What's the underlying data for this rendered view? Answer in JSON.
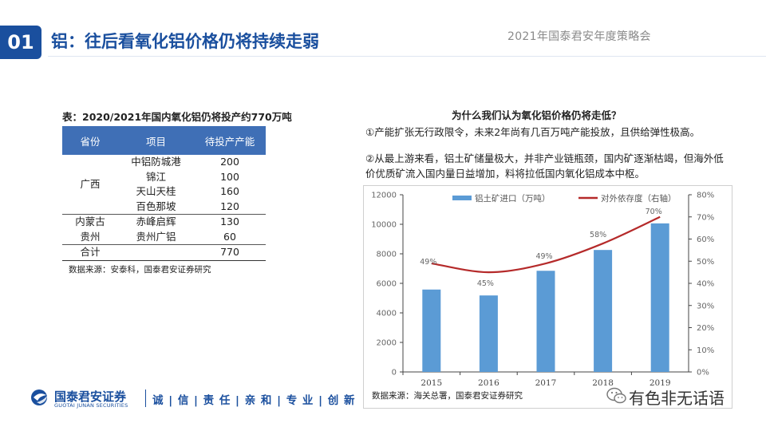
{
  "header": {
    "badge": "01",
    "title": "铝：往后看氧化铝价格仍将持续走弱",
    "event": "2021年国泰君安年度策略会"
  },
  "table": {
    "caption": "表：2020/2021年国内氧化铝仍将投产约770万吨",
    "headers": [
      "省份",
      "项目",
      "待投产产能"
    ],
    "groups": [
      {
        "province": "广西",
        "rows": [
          {
            "project": "中铝防城港",
            "capacity": "200"
          },
          {
            "project": "锦江",
            "capacity": "100"
          },
          {
            "project": "天山天桂",
            "capacity": "160"
          },
          {
            "project": "百色那坡",
            "capacity": "120"
          }
        ]
      },
      {
        "province": "内蒙古",
        "rows": [
          {
            "project": "赤峰启辉",
            "capacity": "130"
          }
        ]
      },
      {
        "province": "贵州",
        "rows": [
          {
            "project": "贵州广铝",
            "capacity": "60"
          }
        ]
      }
    ],
    "total": {
      "label": "合计",
      "capacity": "770"
    },
    "source": "数据来源：安泰科，国泰君安证券研究"
  },
  "right": {
    "question": "为什么我们认为氧化铝价格仍将走低？",
    "point1": "①产能扩张无行政限令，未来2年尚有几百万吨产能投放，且供给弹性极高。",
    "point2": "②从最上游来看，铝土矿储量极大，并非产业链瓶颈，国内矿逐渐枯竭，但海外低价优质矿流入国内量日益增加，料将拉低国内氧化铝成本中枢。",
    "chart_source": "数据来源：海关总署，国泰君安证券研究"
  },
  "chart_data": {
    "type": "bar",
    "categories": [
      "2015",
      "2016",
      "2017",
      "2018",
      "2019"
    ],
    "series": [
      {
        "name": "铝土矿进口（万吨）",
        "type": "bar",
        "axis": "left",
        "color": "#5b9bd5",
        "values": [
          5580,
          5180,
          6850,
          8260,
          10060
        ]
      },
      {
        "name": "对外依存度（右轴）",
        "type": "line",
        "axis": "right",
        "color": "#b52a2a",
        "values": [
          49,
          45,
          49,
          58,
          70
        ],
        "labels": [
          "49%",
          "45%",
          "49%",
          "58%",
          "70%"
        ]
      }
    ],
    "y_left": {
      "min": 0,
      "max": 12000,
      "ticks": [
        "0",
        "2000",
        "4000",
        "6000",
        "8000",
        "10000",
        "12000"
      ]
    },
    "y_right": {
      "min": 0,
      "max": 80,
      "ticks": [
        "0%",
        "10%",
        "20%",
        "30%",
        "40%",
        "50%",
        "60%",
        "70%",
        "80%"
      ]
    },
    "legend": "top",
    "grid": false
  },
  "footer": {
    "brand": "国泰君安证券",
    "brand_en": "GUOTAI JUNAN SECURITIES",
    "slogan": "诚 | 信 | 责 任 | 亲 和 | 专 业 | 创 新",
    "watermark": "有色非无话语"
  },
  "colors": {
    "brand": "#1a4f9e",
    "table_header": "#3f6fb6",
    "bar": "#5b9bd5",
    "line": "#b52a2a"
  }
}
